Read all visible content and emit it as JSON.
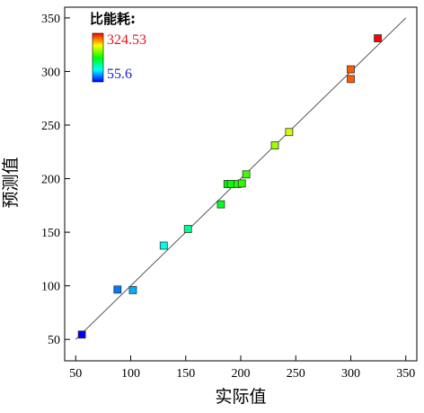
{
  "chart_data": {
    "type": "scatter",
    "xlabel": "实际值",
    "ylabel": "预测值",
    "xlim": [
      40,
      360
    ],
    "ylim": [
      30,
      360
    ],
    "x_ticks": [
      50,
      100,
      150,
      200,
      250,
      300,
      350
    ],
    "y_ticks": [
      50,
      100,
      150,
      200,
      250,
      300,
      350
    ],
    "x_tick_labels": [
      "50",
      "100",
      "150",
      "200",
      "250",
      "300",
      "350"
    ],
    "y_tick_labels": [
      "50",
      "100",
      "150",
      "200",
      "250",
      "300",
      "350"
    ],
    "reference_line": {
      "from": [
        50,
        50
      ],
      "to": [
        350,
        350
      ]
    },
    "grid": false,
    "legend": {
      "title": "比能耗:",
      "max_label": "324.53",
      "min_label": "55.6",
      "max": 324.53,
      "min": 55.6,
      "placement": "top-left"
    },
    "points": [
      {
        "x": 55.6,
        "y": 54.5
      },
      {
        "x": 88,
        "y": 96.5
      },
      {
        "x": 102,
        "y": 96
      },
      {
        "x": 130,
        "y": 137.5
      },
      {
        "x": 152,
        "y": 153
      },
      {
        "x": 182,
        "y": 176
      },
      {
        "x": 188,
        "y": 195
      },
      {
        "x": 191,
        "y": 195
      },
      {
        "x": 197,
        "y": 195
      },
      {
        "x": 201,
        "y": 195.5
      },
      {
        "x": 205,
        "y": 204
      },
      {
        "x": 231,
        "y": 231
      },
      {
        "x": 244,
        "y": 243.5
      },
      {
        "x": 300,
        "y": 302
      },
      {
        "x": 300,
        "y": 293
      },
      {
        "x": 324.53,
        "y": 331
      }
    ]
  }
}
